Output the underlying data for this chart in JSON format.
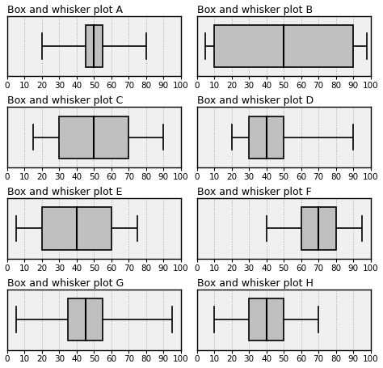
{
  "plots": [
    {
      "title": "Box and whisker plot A",
      "min": 20,
      "q1": 45,
      "median": 50,
      "q3": 55,
      "max": 80
    },
    {
      "title": "Box and whisker plot B",
      "min": 5,
      "q1": 10,
      "median": 50,
      "q3": 90,
      "max": 98
    },
    {
      "title": "Box and whisker plot C",
      "min": 15,
      "q1": 30,
      "median": 50,
      "q3": 70,
      "max": 90
    },
    {
      "title": "Box and whisker plot D",
      "min": 20,
      "q1": 30,
      "median": 40,
      "q3": 50,
      "max": 90
    },
    {
      "title": "Box and whisker plot E",
      "min": 5,
      "q1": 20,
      "median": 40,
      "q3": 60,
      "max": 75
    },
    {
      "title": "Box and whisker plot F",
      "min": 40,
      "q1": 60,
      "median": 70,
      "q3": 80,
      "max": 95
    },
    {
      "title": "Box and whisker plot G",
      "min": 5,
      "q1": 35,
      "median": 45,
      "q3": 55,
      "max": 95
    },
    {
      "title": "Box and whisker plot H",
      "min": 10,
      "q1": 30,
      "median": 40,
      "q3": 50,
      "max": 70
    }
  ],
  "xmin": 0,
  "xmax": 100,
  "xticks": [
    0,
    10,
    20,
    30,
    40,
    50,
    60,
    70,
    80,
    90,
    100
  ],
  "box_facecolor": "#c0c0c0",
  "box_edgecolor": "#000000",
  "whisker_color": "#000000",
  "grid_color": "#aaaaaa",
  "background": "#ffffff",
  "panel_background": "#f0f0f0",
  "title_fontsize": 9,
  "tick_fontsize": 7.5
}
